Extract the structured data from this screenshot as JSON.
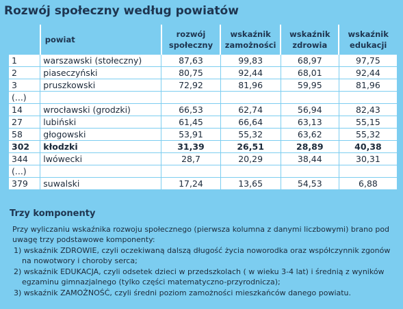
{
  "title": "Rozwój społeczny według powiatów",
  "table": {
    "header": [
      "powiat",
      "rozwój społeczny",
      "wskaźnik zamożności",
      "wskaźnik zdrowia",
      "wskaźnik edukacji"
    ],
    "rows": [
      [
        "1",
        "warszawski (stołeczny)",
        "87,63",
        "99,83",
        "68,97",
        "97,75"
      ],
      [
        "2",
        "piaseczyński",
        "80,75",
        "92,44",
        "68,01",
        "92,44"
      ],
      [
        "3",
        "pruszkowski",
        "72,92",
        "81,96",
        "59,95",
        "81,96"
      ],
      [
        "(...)"
      ],
      [
        "14",
        "wrocławski (grodzki)",
        "66,53",
        "62,74",
        "56,94",
        "82,43"
      ],
      [
        "27",
        "lubiński",
        "61,45",
        "66,64",
        "63,13",
        "55,15"
      ],
      [
        "58",
        "głogowski",
        "53,91",
        "55,32",
        "63,62",
        "55,32"
      ],
      [
        "302",
        "kłodzki",
        "31,39",
        "26,51",
        "28,89",
        "40,38"
      ],
      [
        "344",
        "lwówecki",
        "28,7",
        "20,29",
        "38,44",
        "30,31"
      ],
      [
        "(...)"
      ],
      [
        "379",
        "suwalski",
        "17,24",
        "13,65",
        "54,53",
        "6,88"
      ]
    ]
  },
  "notes": {
    "title": "Trzy komponenty",
    "intro": "Przy wyliczaniu wskaźnika rozwoju społecznego (pierwsza kolumna z danymi liczbowymi) brano pod uwagę trzy podstawowe komponenty:",
    "items": [
      "1) wskaźnik ZDROWIE, czyli oczekiwaną dalszą długość życia noworodka oraz współczynnik zgonów na nowotwory i choroby serca;",
      "2) wskaźnik EDUKACJA, czyli odsetek dzieci w przedszkolach ( w wieku 3-4 lat) i średnią z wyników egzaminu gimnazjalnego (tylko części matematyczno-przyrodnicza);",
      "3) wskaźnik ZAMOŻNOŚĆ, czyli średni poziom zamożności mieszkańców danego powiatu."
    ]
  }
}
